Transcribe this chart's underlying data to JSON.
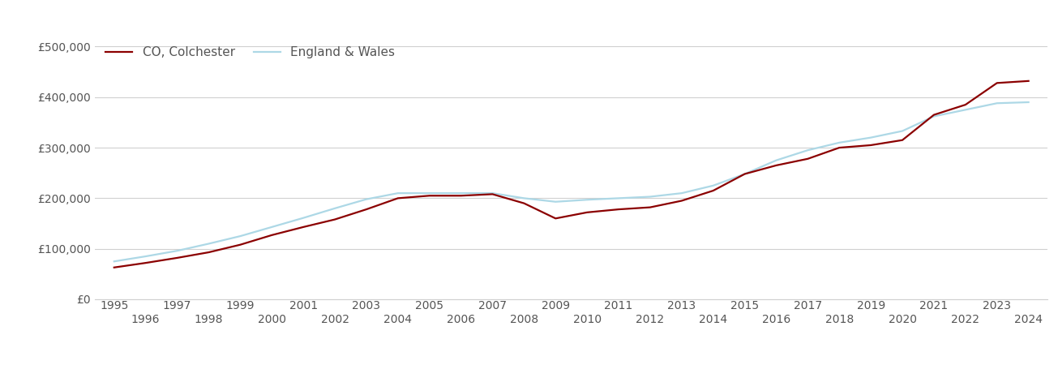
{
  "title": "",
  "colchester_data": {
    "years": [
      1995,
      1996,
      1997,
      1998,
      1999,
      2000,
      2001,
      2002,
      2003,
      2004,
      2005,
      2006,
      2007,
      2008,
      2009,
      2010,
      2011,
      2012,
      2013,
      2014,
      2015,
      2016,
      2017,
      2018,
      2019,
      2020,
      2021,
      2022,
      2023,
      2024
    ],
    "values": [
      63000,
      72000,
      82000,
      93000,
      108000,
      127000,
      143000,
      158000,
      178000,
      200000,
      205000,
      205000,
      208000,
      190000,
      160000,
      172000,
      178000,
      182000,
      195000,
      215000,
      248000,
      265000,
      278000,
      300000,
      305000,
      315000,
      365000,
      385000,
      428000,
      432000
    ]
  },
  "england_wales_data": {
    "years": [
      1995,
      1996,
      1997,
      1998,
      1999,
      2000,
      2001,
      2002,
      2003,
      2004,
      2005,
      2006,
      2007,
      2008,
      2009,
      2010,
      2011,
      2012,
      2013,
      2014,
      2015,
      2016,
      2017,
      2018,
      2019,
      2020,
      2021,
      2022,
      2023,
      2024
    ],
    "values": [
      75000,
      85000,
      96000,
      110000,
      125000,
      143000,
      161000,
      180000,
      198000,
      210000,
      210000,
      210000,
      210000,
      200000,
      193000,
      197000,
      200000,
      203000,
      210000,
      225000,
      248000,
      275000,
      295000,
      310000,
      320000,
      333000,
      362000,
      375000,
      388000,
      390000
    ]
  },
  "colchester_color": "#8B0000",
  "england_wales_color": "#ADD8E6",
  "colchester_label": "CO, Colchester",
  "england_wales_label": "England & Wales",
  "ylim": [
    0,
    520000
  ],
  "yticks": [
    0,
    100000,
    200000,
    300000,
    400000,
    500000
  ],
  "ytick_labels": [
    "£0",
    "£100,000",
    "£200,000",
    "£300,000",
    "£400,000",
    "£500,000"
  ],
  "xticks_odd": [
    1995,
    1997,
    1999,
    2001,
    2003,
    2005,
    2007,
    2009,
    2011,
    2013,
    2015,
    2017,
    2019,
    2021,
    2023
  ],
  "xticks_even": [
    1996,
    1998,
    2000,
    2002,
    2004,
    2006,
    2008,
    2010,
    2012,
    2014,
    2016,
    2018,
    2020,
    2022,
    2024
  ],
  "xlim": [
    1994.4,
    2024.6
  ],
  "background_color": "#ffffff",
  "grid_color": "#d0d0d0",
  "line_width": 1.6,
  "legend_fontsize": 11,
  "tick_fontsize": 10,
  "tick_color": "#555555"
}
